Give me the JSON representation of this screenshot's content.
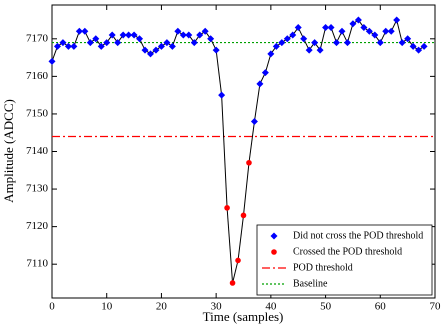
{
  "chart_data": {
    "type": "line",
    "xlabel": "Time (samples)",
    "ylabel": "Amplitude (ADCC)",
    "x": [
      0,
      1,
      2,
      3,
      4,
      5,
      6,
      7,
      8,
      9,
      10,
      11,
      12,
      13,
      14,
      15,
      16,
      17,
      18,
      19,
      20,
      21,
      22,
      23,
      24,
      25,
      26,
      27,
      28,
      29,
      30,
      31,
      32,
      33,
      34,
      35,
      36,
      37,
      38,
      39,
      40,
      41,
      42,
      43,
      44,
      45,
      46,
      47,
      48,
      49,
      50,
      51,
      52,
      53,
      54,
      55,
      56,
      57,
      58,
      59,
      60,
      61,
      62,
      63,
      64,
      65,
      66,
      67,
      68
    ],
    "series": [
      {
        "name": "Did not cross the POD threshold",
        "color": "#0000ff",
        "marker": "diamond",
        "values": [
          7164,
          7168,
          7169,
          7168,
          7168,
          7172,
          7172,
          7169,
          7170,
          7168,
          7169,
          7171,
          7169,
          7171,
          7171,
          7171,
          7170,
          7167,
          7166,
          7167,
          7168,
          7169,
          7168,
          7172,
          7171,
          7171,
          7169,
          7171,
          7172,
          7170,
          7167,
          7155,
          null,
          null,
          null,
          null,
          null,
          7148,
          7158,
          7161,
          7166,
          7168,
          7169,
          7170,
          7171,
          7173,
          7170,
          7167,
          7169,
          7167,
          7173,
          7173,
          7169,
          7172,
          7169,
          7174,
          7175,
          7173,
          7172,
          7171,
          7169,
          7172,
          7172,
          7175,
          7169,
          7170,
          7168,
          7167,
          7168
        ]
      },
      {
        "name": "Crossed the POD threshold",
        "color": "#ff0000",
        "marker": "circle",
        "values": [
          null,
          null,
          null,
          null,
          null,
          null,
          null,
          null,
          null,
          null,
          null,
          null,
          null,
          null,
          null,
          null,
          null,
          null,
          null,
          null,
          null,
          null,
          null,
          null,
          null,
          null,
          null,
          null,
          null,
          null,
          null,
          null,
          7125,
          7105,
          7111,
          7123,
          7137,
          null,
          null,
          null,
          null,
          null,
          null,
          null,
          null,
          null,
          null,
          null,
          null,
          null,
          null,
          null,
          null,
          null,
          null,
          null,
          null,
          null,
          null,
          null,
          null,
          null,
          null,
          null,
          null,
          null,
          null,
          null,
          null
        ]
      }
    ],
    "line_color": "#000000",
    "hlines": [
      {
        "name": "POD threshold",
        "value": 7144,
        "color": "#ff0000",
        "style": "dashdot"
      },
      {
        "name": "Baseline",
        "value": 7169,
        "color": "#00a000",
        "style": "dotted"
      }
    ],
    "xlim": [
      0,
      70
    ],
    "xticks": [
      0,
      10,
      20,
      30,
      40,
      50,
      60,
      70
    ],
    "ylim": [
      7101,
      7179
    ],
    "yticks": [
      7110,
      7120,
      7130,
      7140,
      7150,
      7160,
      7170
    ],
    "legend": "lower right"
  }
}
